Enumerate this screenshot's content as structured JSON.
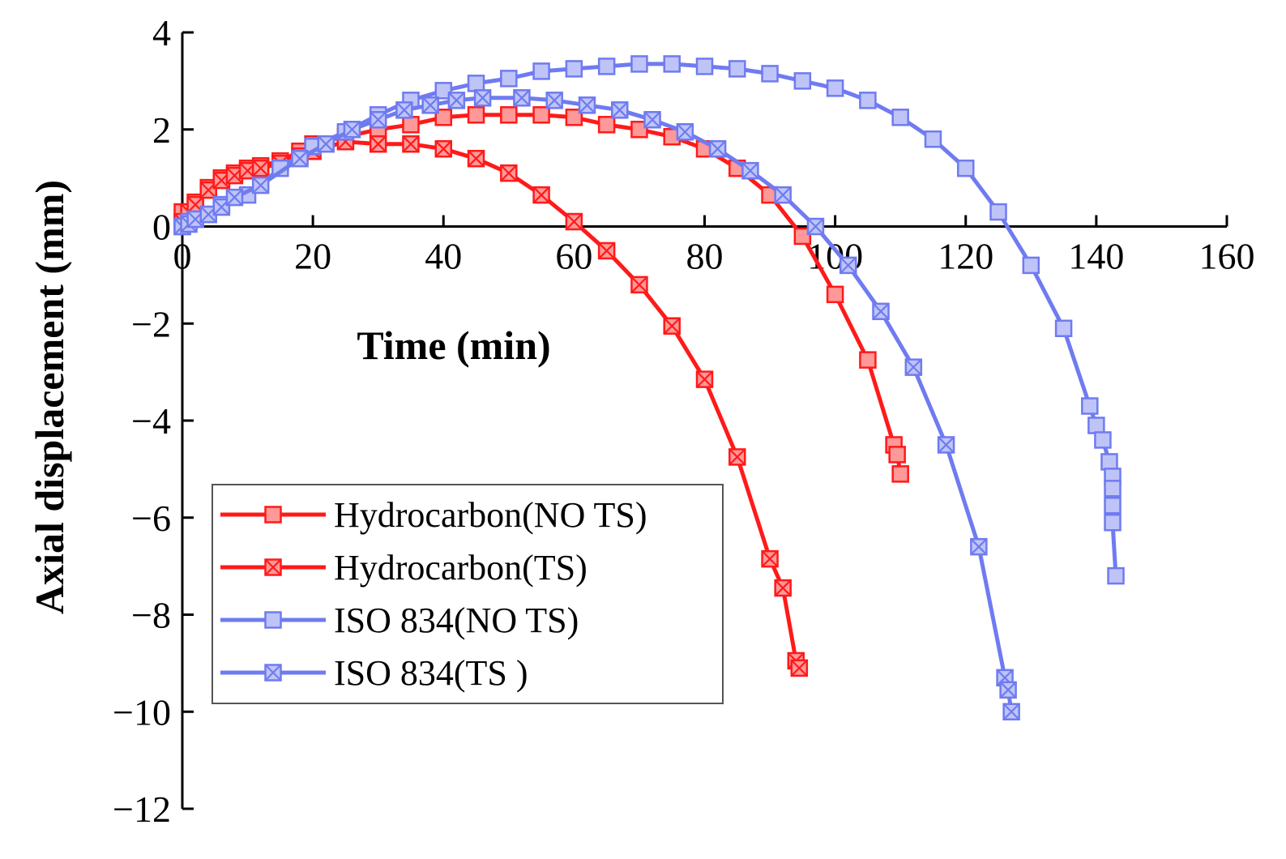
{
  "chart_data": {
    "type": "line",
    "title": "",
    "xlabel": "Time (min)",
    "ylabel": "Axial displacement (mm)",
    "xlim": [
      0,
      160
    ],
    "ylim": [
      -12,
      4
    ],
    "xticks": [
      0,
      20,
      40,
      60,
      80,
      100,
      120,
      140,
      160
    ],
    "yticks": [
      4,
      2,
      0,
      -2,
      -4,
      -6,
      -8,
      -10,
      -12
    ],
    "xtick_labels": [
      "0",
      "20",
      "40",
      "60",
      "80",
      "100",
      "120",
      "140",
      "160"
    ],
    "ytick_labels": [
      "4",
      "2",
      "0",
      "−2",
      "−4",
      "−6",
      "−8",
      "−10",
      "−12"
    ],
    "grid": false,
    "legend_position": "bottom-left",
    "series": [
      {
        "name": "Hydrocarbon(NO TS)",
        "color": "#ff1a1a",
        "marker": "square",
        "points": [
          [
            0,
            0.3
          ],
          [
            2,
            0.5
          ],
          [
            4,
            0.8
          ],
          [
            6,
            1.0
          ],
          [
            8,
            1.1
          ],
          [
            10,
            1.2
          ],
          [
            12,
            1.25
          ],
          [
            15,
            1.35
          ],
          [
            18,
            1.55
          ],
          [
            20,
            1.7
          ],
          [
            25,
            1.85
          ],
          [
            30,
            2.0
          ],
          [
            35,
            2.1
          ],
          [
            40,
            2.25
          ],
          [
            45,
            2.3
          ],
          [
            50,
            2.3
          ],
          [
            55,
            2.3
          ],
          [
            60,
            2.25
          ],
          [
            65,
            2.1
          ],
          [
            70,
            2.0
          ],
          [
            75,
            1.85
          ],
          [
            80,
            1.6
          ],
          [
            85,
            1.2
          ],
          [
            90,
            0.65
          ],
          [
            95,
            -0.2
          ],
          [
            100,
            -1.4
          ],
          [
            105,
            -2.75
          ],
          [
            109,
            -4.5
          ],
          [
            109.5,
            -4.7
          ],
          [
            110,
            -5.1
          ]
        ]
      },
      {
        "name": "Hydrocarbon(TS)",
        "color": "#ff1a1a",
        "marker": "crossed-square",
        "points": [
          [
            0,
            0.1
          ],
          [
            1,
            0.3
          ],
          [
            2,
            0.45
          ],
          [
            4,
            0.75
          ],
          [
            6,
            0.95
          ],
          [
            8,
            1.05
          ],
          [
            10,
            1.15
          ],
          [
            12,
            1.2
          ],
          [
            15,
            1.3
          ],
          [
            18,
            1.45
          ],
          [
            20,
            1.55
          ],
          [
            25,
            1.75
          ],
          [
            30,
            1.7
          ],
          [
            35,
            1.7
          ],
          [
            40,
            1.6
          ],
          [
            45,
            1.4
          ],
          [
            50,
            1.1
          ],
          [
            55,
            0.65
          ],
          [
            60,
            0.1
          ],
          [
            65,
            -0.5
          ],
          [
            70,
            -1.2
          ],
          [
            75,
            -2.05
          ],
          [
            80,
            -3.15
          ],
          [
            85,
            -4.75
          ],
          [
            90,
            -6.85
          ],
          [
            92,
            -7.45
          ],
          [
            94,
            -8.95
          ],
          [
            94.5,
            -9.1
          ]
        ]
      },
      {
        "name": "ISO 834(NO TS)",
        "color": "#6f7bf0",
        "marker": "square",
        "points": [
          [
            0,
            0.0
          ],
          [
            1,
            0.1
          ],
          [
            2,
            0.15
          ],
          [
            4,
            0.25
          ],
          [
            6,
            0.45
          ],
          [
            10,
            0.65
          ],
          [
            15,
            1.2
          ],
          [
            20,
            1.65
          ],
          [
            25,
            1.95
          ],
          [
            30,
            2.3
          ],
          [
            35,
            2.6
          ],
          [
            40,
            2.8
          ],
          [
            45,
            2.95
          ],
          [
            50,
            3.05
          ],
          [
            55,
            3.2
          ],
          [
            60,
            3.25
          ],
          [
            65,
            3.3
          ],
          [
            70,
            3.35
          ],
          [
            75,
            3.35
          ],
          [
            80,
            3.3
          ],
          [
            85,
            3.25
          ],
          [
            90,
            3.15
          ],
          [
            95,
            3.0
          ],
          [
            100,
            2.85
          ],
          [
            105,
            2.6
          ],
          [
            110,
            2.25
          ],
          [
            115,
            1.8
          ],
          [
            120,
            1.2
          ],
          [
            125,
            0.3
          ],
          [
            130,
            -0.8
          ],
          [
            135,
            -2.1
          ],
          [
            139,
            -3.7
          ],
          [
            140,
            -4.1
          ],
          [
            141,
            -4.4
          ],
          [
            142,
            -4.85
          ],
          [
            142.5,
            -5.15
          ],
          [
            142.5,
            -5.4
          ],
          [
            142.5,
            -5.75
          ],
          [
            142.5,
            -6.1
          ],
          [
            143,
            -7.2
          ]
        ]
      },
      {
        "name": "ISO 834(TS )",
        "color": "#6f7bf0",
        "marker": "crossed-square",
        "points": [
          [
            0,
            0.0
          ],
          [
            1,
            0.05
          ],
          [
            2,
            0.15
          ],
          [
            4,
            0.25
          ],
          [
            6,
            0.4
          ],
          [
            8,
            0.6
          ],
          [
            12,
            0.85
          ],
          [
            18,
            1.4
          ],
          [
            22,
            1.7
          ],
          [
            26,
            2.0
          ],
          [
            30,
            2.2
          ],
          [
            34,
            2.4
          ],
          [
            38,
            2.5
          ],
          [
            42,
            2.6
          ],
          [
            46,
            2.65
          ],
          [
            52,
            2.65
          ],
          [
            57,
            2.6
          ],
          [
            62,
            2.5
          ],
          [
            67,
            2.4
          ],
          [
            72,
            2.2
          ],
          [
            77,
            1.95
          ],
          [
            82,
            1.6
          ],
          [
            87,
            1.15
          ],
          [
            92,
            0.65
          ],
          [
            97,
            -0.0
          ],
          [
            102,
            -0.8
          ],
          [
            107,
            -1.75
          ],
          [
            112,
            -2.9
          ],
          [
            117,
            -4.5
          ],
          [
            122,
            -6.6
          ],
          [
            126,
            -9.3
          ],
          [
            126.5,
            -9.55
          ],
          [
            127,
            -10.0
          ]
        ]
      }
    ]
  }
}
